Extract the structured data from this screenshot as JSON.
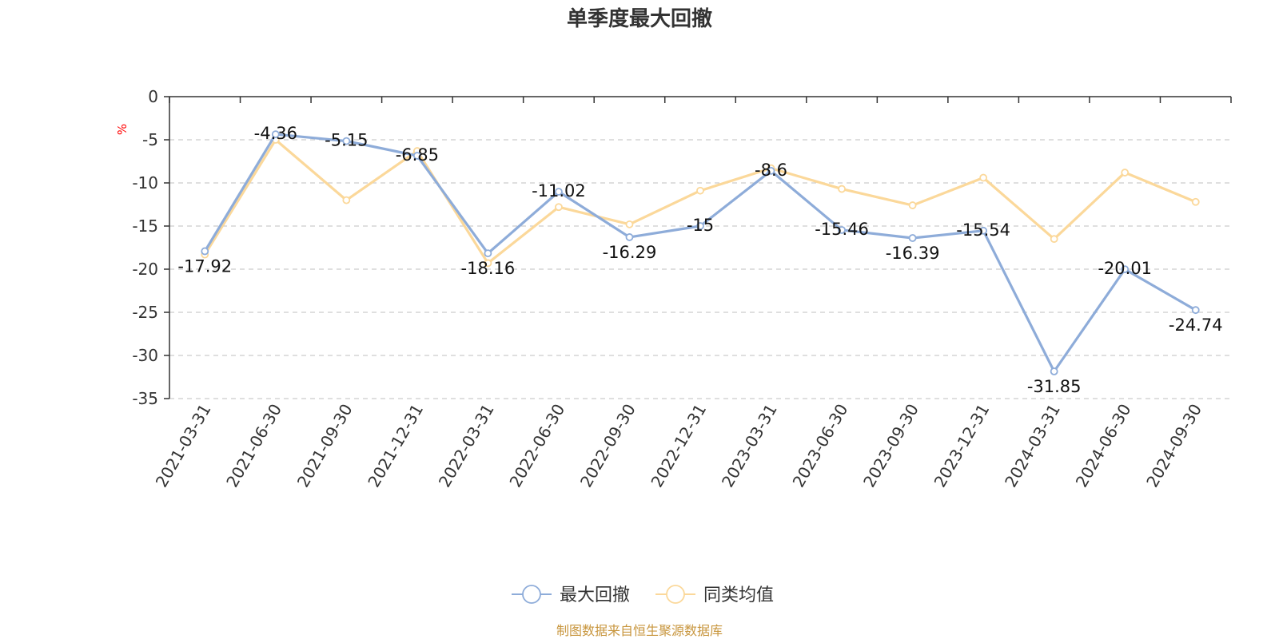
{
  "chart_data": {
    "type": "line",
    "title": "单季度最大回撤",
    "ylabel": "%",
    "ylim": [
      -35,
      0
    ],
    "yticks": [
      0,
      -5,
      -10,
      -15,
      -20,
      -25,
      -30,
      -35
    ],
    "categories": [
      "2021-03-31",
      "2021-06-30",
      "2021-09-30",
      "2021-12-31",
      "2022-03-31",
      "2022-06-30",
      "2022-09-30",
      "2022-12-31",
      "2023-03-31",
      "2023-06-30",
      "2023-09-30",
      "2023-12-31",
      "2024-03-31",
      "2024-06-30",
      "2024-09-30"
    ],
    "series": [
      {
        "name": "最大回撤",
        "color": "#8eacd9",
        "values": [
          -17.92,
          -4.36,
          -5.15,
          -6.85,
          -18.16,
          -11.02,
          -16.29,
          -15,
          -8.6,
          -15.46,
          -16.39,
          -15.54,
          -31.85,
          -20.01,
          -24.74
        ],
        "labels": [
          "-17.92",
          "-4.36",
          "-5.15",
          "-6.85",
          "-18.16",
          "-11.02",
          "-16.29",
          "-15",
          "-8.6",
          "-15.46",
          "-16.39",
          "-15.54",
          "-31.85",
          "-20.01",
          "-24.74"
        ]
      },
      {
        "name": "同类均值",
        "color": "#fbd89a",
        "values": [
          -18.3,
          -5.0,
          -12.0,
          -6.3,
          -19.3,
          -12.8,
          -14.8,
          -10.9,
          -8.3,
          -10.7,
          -12.6,
          -9.4,
          -16.5,
          -8.8,
          -12.2
        ]
      }
    ],
    "grid": true,
    "legend_position": "bottom-center",
    "source": "制图数据来自恒生聚源数据库",
    "axis_color": "#333333",
    "grid_color": "#cccccc",
    "unit_color": "#ff0000",
    "source_color": "#c8963e"
  }
}
